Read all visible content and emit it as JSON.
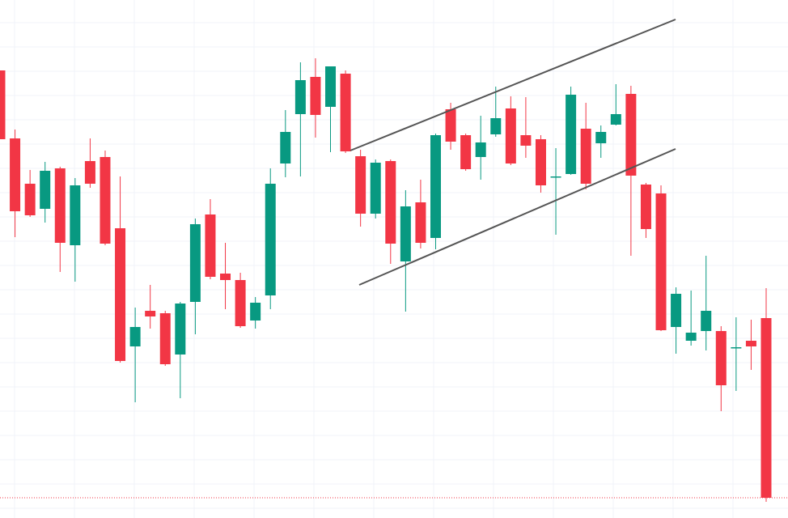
{
  "chart_data": {
    "type": "candlestick",
    "ylim": [
      0,
      640
    ],
    "grid": true,
    "up_color": "#089981",
    "down_color": "#f23645",
    "open": [
      553,
      469,
      413,
      382,
      432,
      337,
      441,
      446,
      358,
      212,
      256,
      253,
      202,
      267,
      375,
      302,
      294,
      244,
      275,
      438,
      499,
      545,
      508,
      549,
      447,
      376,
      441,
      317,
      390,
      346,
      505,
      473,
      446,
      474,
      506,
      473,
      468,
      421,
      425,
      481,
      463,
      486,
      524,
      412,
      401,
      236,
      219,
      231,
      231,
      210,
      219,
      247
    ],
    "high": [
      553,
      480,
      430,
      440,
      434,
      420,
      469,
      454,
      422,
      260,
      288,
      256,
      267,
      370,
      394,
      340,
      303,
      273,
      432,
      504,
      563,
      568,
      558,
      553,
      455,
      443,
      443,
      405,
      418,
      475,
      513,
      475,
      497,
      533,
      521,
      520,
      473,
      457,
      533,
      513,
      485,
      536,
      534,
      414,
      411,
      285,
      281,
      324,
      237,
      248,
      245,
      284
    ],
    "low": [
      468,
      347,
      372,
      365,
      304,
      292,
      408,
      337,
      192,
      143,
      234,
      188,
      148,
      227,
      295,
      258,
      235,
      234,
      258,
      421,
      422,
      470,
      452,
      451,
      360,
      370,
      314,
      255,
      333,
      332,
      455,
      429,
      418,
      471,
      436,
      445,
      402,
      350,
      424,
      406,
      445,
      485,
      324,
      346,
      231,
      203,
      213,
      207,
      132,
      157,
      183,
      20
    ],
    "close": [
      468,
      379,
      374,
      429,
      340,
      411,
      413,
      339,
      194,
      236,
      249,
      190,
      265,
      363,
      298,
      294,
      237,
      266,
      413,
      477,
      541,
      498,
      558,
      453,
      376,
      439,
      339,
      385,
      340,
      473,
      465,
      431,
      464,
      494,
      438,
      460,
      411,
      422,
      523,
      413,
      477,
      499,
      423,
      357,
      232,
      277,
      229,
      256,
      164,
      211,
      212,
      25
    ]
  }
}
